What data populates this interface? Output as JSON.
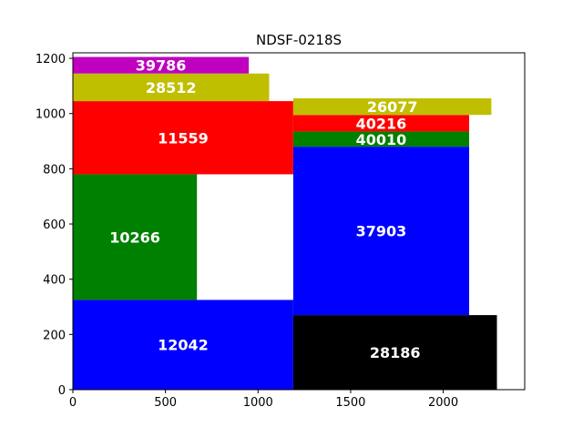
{
  "chart_data": {
    "type": "rectangle-packing",
    "title": "NDSF-0218S",
    "xlim": [
      0,
      2440
    ],
    "ylim": [
      0,
      1220
    ],
    "x_ticks": [
      0,
      500,
      1000,
      1500,
      2000
    ],
    "y_ticks": [
      0,
      200,
      400,
      600,
      800,
      1000,
      1200
    ],
    "rectangles": [
      {
        "label": "12042",
        "x0": 0,
        "x1": 1190,
        "y0": 0,
        "y1": 325,
        "color": "#0000ff"
      },
      {
        "label": "10266",
        "x0": 0,
        "x1": 670,
        "y0": 325,
        "y1": 780,
        "color": "#008000"
      },
      {
        "label": "11559",
        "x0": 0,
        "x1": 1190,
        "y0": 780,
        "y1": 1045,
        "color": "#ff0000"
      },
      {
        "label": "28512",
        "x0": 0,
        "x1": 1060,
        "y0": 1045,
        "y1": 1145,
        "color": "#bfbf00"
      },
      {
        "label": "39786",
        "x0": 0,
        "x1": 950,
        "y0": 1145,
        "y1": 1205,
        "color": "#bf00bf"
      },
      {
        "label": "28186",
        "x0": 1190,
        "x1": 2290,
        "y0": 0,
        "y1": 270,
        "color": "#000000"
      },
      {
        "label": "37903",
        "x0": 1190,
        "x1": 2140,
        "y0": 270,
        "y1": 880,
        "color": "#0000ff"
      },
      {
        "label": "40010",
        "x0": 1190,
        "x1": 2140,
        "y0": 880,
        "y1": 935,
        "color": "#008000"
      },
      {
        "label": "40216",
        "x0": 1190,
        "x1": 2140,
        "y0": 935,
        "y1": 995,
        "color": "#ff0000"
      },
      {
        "label": "26077",
        "x0": 1190,
        "x1": 2260,
        "y0": 995,
        "y1": 1055,
        "color": "#bfbf00"
      }
    ]
  }
}
